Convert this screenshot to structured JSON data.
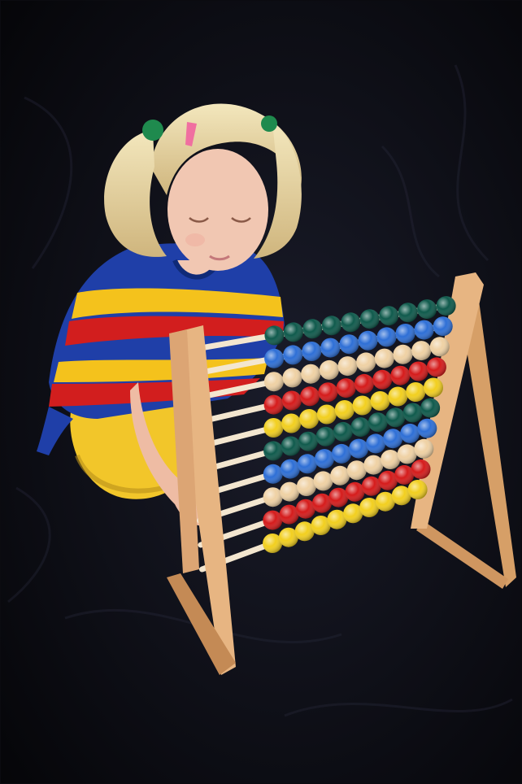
{
  "scene": {
    "subject": "child",
    "object": "abacus",
    "rows": 10
  },
  "colors": {
    "background": "#0a0a12",
    "backdrop_highlight": "#1a1c2a",
    "hair": "#e8d9a8",
    "skin": "#f1c7b2",
    "shirt_blue": "#1f3fa8",
    "shirt_red": "#d21e1e",
    "shirt_yellow": "#f4c21c",
    "pants_yellow": "#f2c62a",
    "wood": "#e7b582",
    "wood_dark": "#c48a55",
    "rod": "#f3e6cf",
    "bead_row_colors": [
      "#0f5a4c",
      "#2e6fd6",
      "#efd1a4",
      "#d51b1b",
      "#f2cf1f",
      "#0f5a4c",
      "#2e6fd6",
      "#efd1a4",
      "#d51b1b",
      "#f2cf1f"
    ]
  }
}
